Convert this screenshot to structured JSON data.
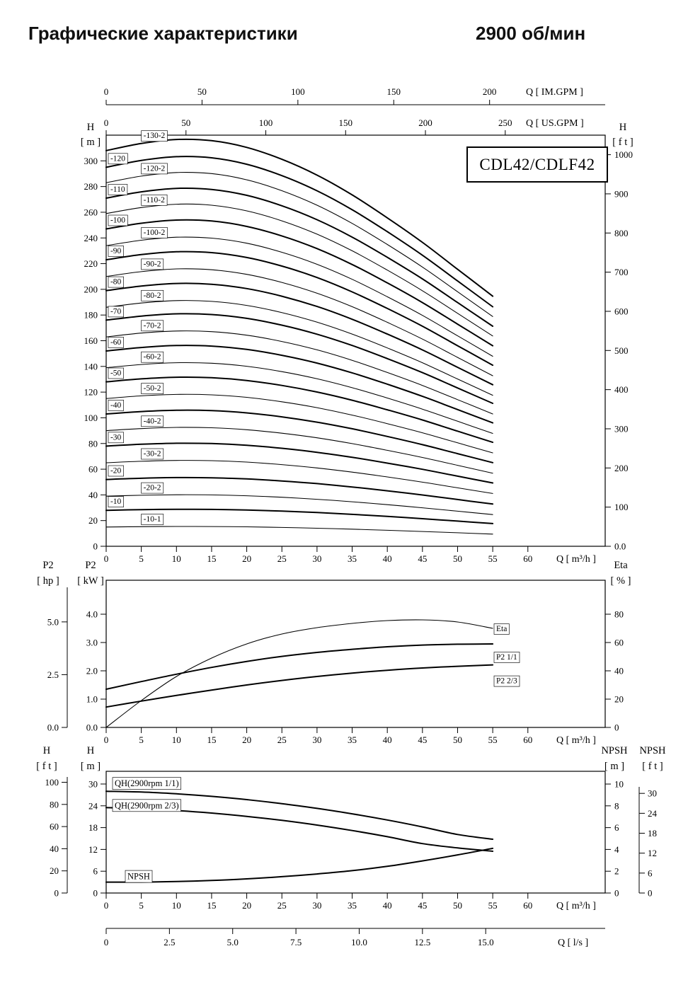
{
  "page": {
    "title": "Графические характеристики",
    "rpm": "2900 об/мин",
    "model": "CDL42/CDLF42"
  },
  "chart_data": [
    {
      "type": "line",
      "name": "head-capacity-multistage",
      "title": "CDL42/CDLF42",
      "x": {
        "label": "Q [ m³/h ]",
        "ticks": [
          0,
          5,
          10,
          15,
          20,
          25,
          30,
          35,
          40,
          45,
          50,
          55,
          60
        ],
        "range": [
          0,
          71
        ]
      },
      "x_im_gpm": {
        "label": "Q [ IM.GPM ]",
        "ticks": [
          0,
          50,
          100,
          150,
          200
        ],
        "gpm_per_m3h": 3.6662
      },
      "x_us_gpm": {
        "label": "Q [ US.GPM ]",
        "ticks": [
          0,
          50,
          100,
          150,
          200,
          250
        ],
        "gpm_per_m3h": 4.4029
      },
      "y_m": {
        "header": [
          "H",
          "[ m ]"
        ],
        "ticks": [
          0,
          20,
          40,
          60,
          80,
          100,
          120,
          140,
          160,
          180,
          200,
          220,
          240,
          260,
          280,
          300
        ],
        "range": [
          0,
          320
        ]
      },
      "y_ft": {
        "header": [
          "H",
          "[ f t ]"
        ],
        "m_per_ft": 0.3048,
        "ticks": [
          [
            0,
            "0.0"
          ],
          [
            100,
            "100"
          ],
          [
            200,
            "200"
          ],
          [
            300,
            "300"
          ],
          [
            400,
            "400"
          ],
          [
            500,
            "500"
          ],
          [
            600,
            "600"
          ],
          [
            700,
            "700"
          ],
          [
            800,
            "800"
          ],
          [
            900,
            "900"
          ],
          [
            1000,
            "1000"
          ]
        ]
      },
      "q_points": [
        0,
        5,
        10,
        15,
        20,
        25,
        30,
        35,
        40,
        45,
        50,
        55
      ],
      "head_profile": [
        1.0,
        1.018,
        1.028,
        1.025,
        1.008,
        0.978,
        0.938,
        0.888,
        0.83,
        0.768,
        0.7,
        0.632
      ],
      "series": [
        {
          "label": "-130-2",
          "shutoff_m": 308,
          "bold": true,
          "label_q": 5.3
        },
        {
          "label": "-120",
          "shutoff_m": 295,
          "bold": true,
          "label_q": 0.6
        },
        {
          "label": "-120-2",
          "shutoff_m": 283,
          "bold": false,
          "label_q": 5.3
        },
        {
          "label": "-110",
          "shutoff_m": 271,
          "bold": true,
          "label_q": 0.6
        },
        {
          "label": "-110-2",
          "shutoff_m": 259,
          "bold": false,
          "label_q": 5.3
        },
        {
          "label": "-100",
          "shutoff_m": 247,
          "bold": true,
          "label_q": 0.6
        },
        {
          "label": "-100-2",
          "shutoff_m": 234,
          "bold": false,
          "label_q": 5.3
        },
        {
          "label": "-90",
          "shutoff_m": 223,
          "bold": true,
          "label_q": 0.6
        },
        {
          "label": "-90-2",
          "shutoff_m": 210,
          "bold": false,
          "label_q": 5.3
        },
        {
          "label": "-80",
          "shutoff_m": 199,
          "bold": true,
          "label_q": 0.6
        },
        {
          "label": "-80-2",
          "shutoff_m": 186,
          "bold": false,
          "label_q": 5.3
        },
        {
          "label": "-70",
          "shutoff_m": 176,
          "bold": true,
          "label_q": 0.6
        },
        {
          "label": "-70-2",
          "shutoff_m": 163,
          "bold": false,
          "label_q": 5.3
        },
        {
          "label": "-60",
          "shutoff_m": 152,
          "bold": true,
          "label_q": 0.6
        },
        {
          "label": "-60-2",
          "shutoff_m": 139,
          "bold": false,
          "label_q": 5.3
        },
        {
          "label": "-50",
          "shutoff_m": 128,
          "bold": true,
          "label_q": 0.6
        },
        {
          "label": "-50-2",
          "shutoff_m": 115,
          "bold": false,
          "label_q": 5.3
        },
        {
          "label": "-40",
          "shutoff_m": 103,
          "bold": true,
          "label_q": 0.6
        },
        {
          "label": "-40-2",
          "shutoff_m": 90,
          "bold": false,
          "label_q": 5.3
        },
        {
          "label": "-30",
          "shutoff_m": 78,
          "bold": true,
          "label_q": 0.6
        },
        {
          "label": "-30-2",
          "shutoff_m": 65,
          "bold": false,
          "label_q": 5.3
        },
        {
          "label": "-20",
          "shutoff_m": 52,
          "bold": true,
          "label_q": 0.6
        },
        {
          "label": "-20-2",
          "shutoff_m": 39,
          "bold": false,
          "label_q": 5.3
        },
        {
          "label": "-10",
          "shutoff_m": 28,
          "bold": true,
          "label_q": 0.6
        },
        {
          "label": "-10-1",
          "shutoff_m": 15,
          "bold": false,
          "label_q": 5.3
        }
      ]
    },
    {
      "type": "line",
      "name": "power-efficiency",
      "x": {
        "label": "Q [ m³/h ]",
        "ticks": [
          0,
          5,
          10,
          15,
          20,
          25,
          30,
          35,
          40,
          45,
          50,
          55,
          60
        ]
      },
      "y_kw": {
        "header": [
          "P2",
          "[ kW ]"
        ],
        "ticks": [
          [
            0,
            "0.0"
          ],
          [
            1,
            "1.0"
          ],
          [
            2,
            "2.0"
          ],
          [
            3,
            "3.0"
          ],
          [
            4,
            "4.0"
          ]
        ],
        "range": [
          0,
          5.2
        ]
      },
      "y_hp": {
        "header": [
          "P2",
          "[ hp ]"
        ],
        "ticks": [
          [
            0,
            "0.0"
          ],
          [
            2.5,
            "2.5"
          ],
          [
            5,
            "5.0"
          ]
        ],
        "kw_per_hp": 0.7457
      },
      "y_eta": {
        "header": [
          "Eta",
          "[ % ]"
        ],
        "ticks": [
          0,
          20,
          40,
          60,
          80
        ],
        "range": [
          0,
          104
        ]
      },
      "q_points": [
        0,
        5,
        10,
        15,
        20,
        25,
        30,
        35,
        40,
        45,
        50,
        55
      ],
      "series": [
        {
          "label": "Eta",
          "axis": "eta",
          "unit": "%",
          "bold": false,
          "label_dy": 0,
          "values": [
            0,
            19,
            36,
            49,
            59,
            66,
            70.5,
            73.5,
            75.5,
            76,
            74.5,
            70
          ]
        },
        {
          "label": "P2  1/1",
          "axis": "kw",
          "unit": "kW",
          "bold": true,
          "label_dy": 18,
          "values": [
            1.35,
            1.62,
            1.88,
            2.12,
            2.33,
            2.51,
            2.65,
            2.76,
            2.85,
            2.91,
            2.94,
            2.95
          ]
        },
        {
          "label": "P2  2/3",
          "axis": "kw",
          "unit": "kW",
          "bold": true,
          "label_dy": 22,
          "values": [
            0.72,
            0.93,
            1.13,
            1.32,
            1.5,
            1.66,
            1.8,
            1.92,
            2.02,
            2.1,
            2.16,
            2.21
          ]
        }
      ]
    },
    {
      "type": "line",
      "name": "qh-npsh",
      "x": {
        "label": "Q [ m³/h ]",
        "ticks": [
          0,
          5,
          10,
          15,
          20,
          25,
          30,
          35,
          40,
          45,
          50,
          55,
          60
        ]
      },
      "x_ls": {
        "label": "Q [ l/s ]",
        "m3h_per_ls": 3.6,
        "ticks": [
          [
            0,
            "0"
          ],
          [
            2.5,
            "2.5"
          ],
          [
            5,
            "5.0"
          ],
          [
            7.5,
            "7.5"
          ],
          [
            10,
            "10.0"
          ],
          [
            12.5,
            "12.5"
          ],
          [
            15,
            "15.0"
          ]
        ]
      },
      "y_m": {
        "header": [
          "H",
          "[ m ]"
        ],
        "ticks": [
          0,
          6,
          12,
          18,
          24,
          30
        ],
        "range": [
          0,
          33.5
        ]
      },
      "y_ft": {
        "header": [
          "H",
          "[ f t ]"
        ],
        "ticks": [
          0,
          20,
          40,
          60,
          80,
          100
        ],
        "m_per_ft": 0.3048
      },
      "y_npsh_m": {
        "header": [
          "NPSH",
          "[ m ]"
        ],
        "ticks": [
          0,
          2,
          4,
          6,
          8,
          10
        ],
        "range": [
          0,
          11.17
        ]
      },
      "y_npsh_ft": {
        "header": [
          "NPSH",
          "[ f t ]"
        ],
        "ticks": [
          0,
          6,
          12,
          18,
          24,
          30
        ],
        "m_per_ft": 0.3048
      },
      "q_points": [
        0,
        5,
        10,
        15,
        20,
        25,
        30,
        35,
        40,
        45,
        50,
        55
      ],
      "series": [
        {
          "label": "QH(2900rpm 1/1)",
          "axis": "m",
          "bold": true,
          "values": [
            28,
            27.8,
            27.3,
            26.6,
            25.7,
            24.6,
            23.3,
            21.8,
            20.1,
            18.2,
            16.1,
            14.8
          ]
        },
        {
          "label": "QH(2900rpm 2/3)",
          "axis": "m",
          "bold": true,
          "values": [
            23.5,
            23.2,
            22.7,
            22.0,
            21.1,
            20.0,
            18.7,
            17.2,
            15.5,
            13.6,
            12.4,
            11.5
          ]
        },
        {
          "label": "NPSH",
          "axis": "npsh",
          "bold": true,
          "values": [
            1.0,
            1.0,
            1.05,
            1.15,
            1.3,
            1.5,
            1.75,
            2.05,
            2.45,
            2.95,
            3.5,
            4.1
          ]
        }
      ]
    }
  ]
}
